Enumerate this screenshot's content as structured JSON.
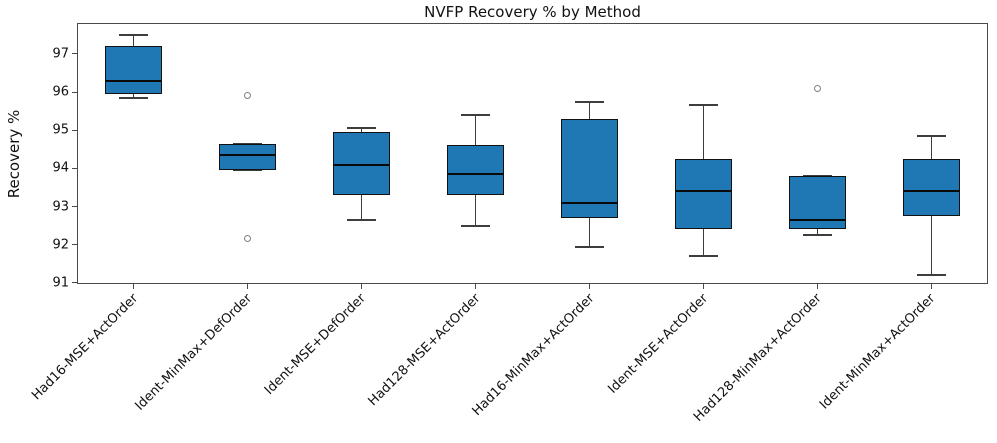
{
  "chart_data": {
    "type": "box",
    "title": "NVFP Recovery % by Method",
    "xlabel": "",
    "ylabel": "Recovery %",
    "y_ticks": [
      91,
      92,
      93,
      94,
      95,
      96,
      97
    ],
    "ylim": [
      90.97,
      97.81
    ],
    "grid": false,
    "legend": "none",
    "categories": [
      "Had16-MSE+ActOrder",
      "Ident-MinMax+DefOrder",
      "Ident-MSE+DefOrder",
      "Had128-MSE+ActOrder",
      "Had16-MinMax+ActOrder",
      "Ident-MSE+ActOrder",
      "Had128-MinMax+ActOrder",
      "Ident-MinMax+ActOrder"
    ],
    "series": [
      {
        "label": "Had16-MSE+ActOrder",
        "whisker_low": 95.85,
        "q1": 95.95,
        "median": 96.3,
        "q3": 97.2,
        "whisker_high": 97.5,
        "outliers": []
      },
      {
        "label": "Ident-MinMax+DefOrder",
        "whisker_low": 93.95,
        "q1": 93.95,
        "median": 94.35,
        "q3": 94.65,
        "whisker_high": 94.65,
        "outliers": [
          95.9,
          92.15
        ]
      },
      {
        "label": "Ident-MSE+DefOrder",
        "whisker_low": 92.65,
        "q1": 93.3,
        "median": 94.1,
        "q3": 94.95,
        "whisker_high": 95.05,
        "outliers": []
      },
      {
        "label": "Had128-MSE+ActOrder",
        "whisker_low": 92.5,
        "q1": 93.3,
        "median": 93.85,
        "q3": 94.6,
        "whisker_high": 95.4,
        "outliers": []
      },
      {
        "label": "Had16-MinMax+ActOrder",
        "whisker_low": 91.95,
        "q1": 92.7,
        "median": 93.1,
        "q3": 95.3,
        "whisker_high": 95.75,
        "outliers": []
      },
      {
        "label": "Ident-MSE+ActOrder",
        "whisker_low": 91.7,
        "q1": 92.4,
        "median": 93.4,
        "q3": 94.25,
        "whisker_high": 95.65,
        "outliers": []
      },
      {
        "label": "Had128-MinMax+ActOrder",
        "whisker_low": 92.25,
        "q1": 92.4,
        "median": 92.65,
        "q3": 93.8,
        "whisker_high": 93.8,
        "outliers": [
          96.1
        ]
      },
      {
        "label": "Ident-MinMax+ActOrder",
        "whisker_low": 91.2,
        "q1": 92.75,
        "median": 93.4,
        "q3": 94.25,
        "whisker_high": 94.85,
        "outliers": []
      }
    ],
    "colors": {
      "box_fill": "#1f77b4",
      "box_edge": "#111111",
      "median": "#0a0a0a",
      "whisker": "#3d3d3d",
      "flier_edge": "#808080",
      "spine": "#4a4a4a",
      "text": "#111111"
    }
  }
}
